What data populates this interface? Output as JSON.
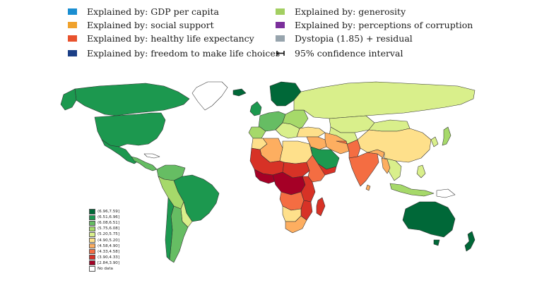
{
  "legend": {
    "items": [
      {
        "label": "Explained by: GDP per capita",
        "color": "#1a8ed1"
      },
      {
        "label": "Explained by: social support",
        "color": "#f0a22c"
      },
      {
        "label": "Explained by: healthy life expectancy",
        "color": "#e8522d"
      },
      {
        "label": "Explained by: freedom to make life choices",
        "color": "#1b3f86"
      },
      {
        "label": "Explained by: generosity",
        "color": "#a3cf62"
      },
      {
        "label": "Explained by: perceptions of corruption",
        "color": "#7b2f9b"
      },
      {
        "label": "Dystopia (1.85) + residual",
        "color": "#97a4ad"
      },
      {
        "label": "95% confidence interval",
        "icon": "confidence-interval-icon"
      }
    ]
  },
  "map": {
    "ocean_color": "#ffffff",
    "border_color": "#333333",
    "scale": [
      {
        "label": "(6.96,7.59]",
        "color": "#006837"
      },
      {
        "label": "(6.51,6.96]",
        "color": "#1a9850"
      },
      {
        "label": "(6.08,6.51]",
        "color": "#66bd63"
      },
      {
        "label": "(5.75,6.08]",
        "color": "#a6d96a"
      },
      {
        "label": "(5.20,5.75]",
        "color": "#d9ef8b"
      },
      {
        "label": "(4.90,5.20]",
        "color": "#fee08b"
      },
      {
        "label": "(4.58,4.90]",
        "color": "#fdae61"
      },
      {
        "label": "(4.33,4.58]",
        "color": "#f46d43"
      },
      {
        "label": "(3.90,4.33]",
        "color": "#d73027"
      },
      {
        "label": "[2.84,3.90]",
        "color": "#a50026"
      },
      {
        "label": "No data",
        "color": "#ffffff"
      }
    ]
  }
}
